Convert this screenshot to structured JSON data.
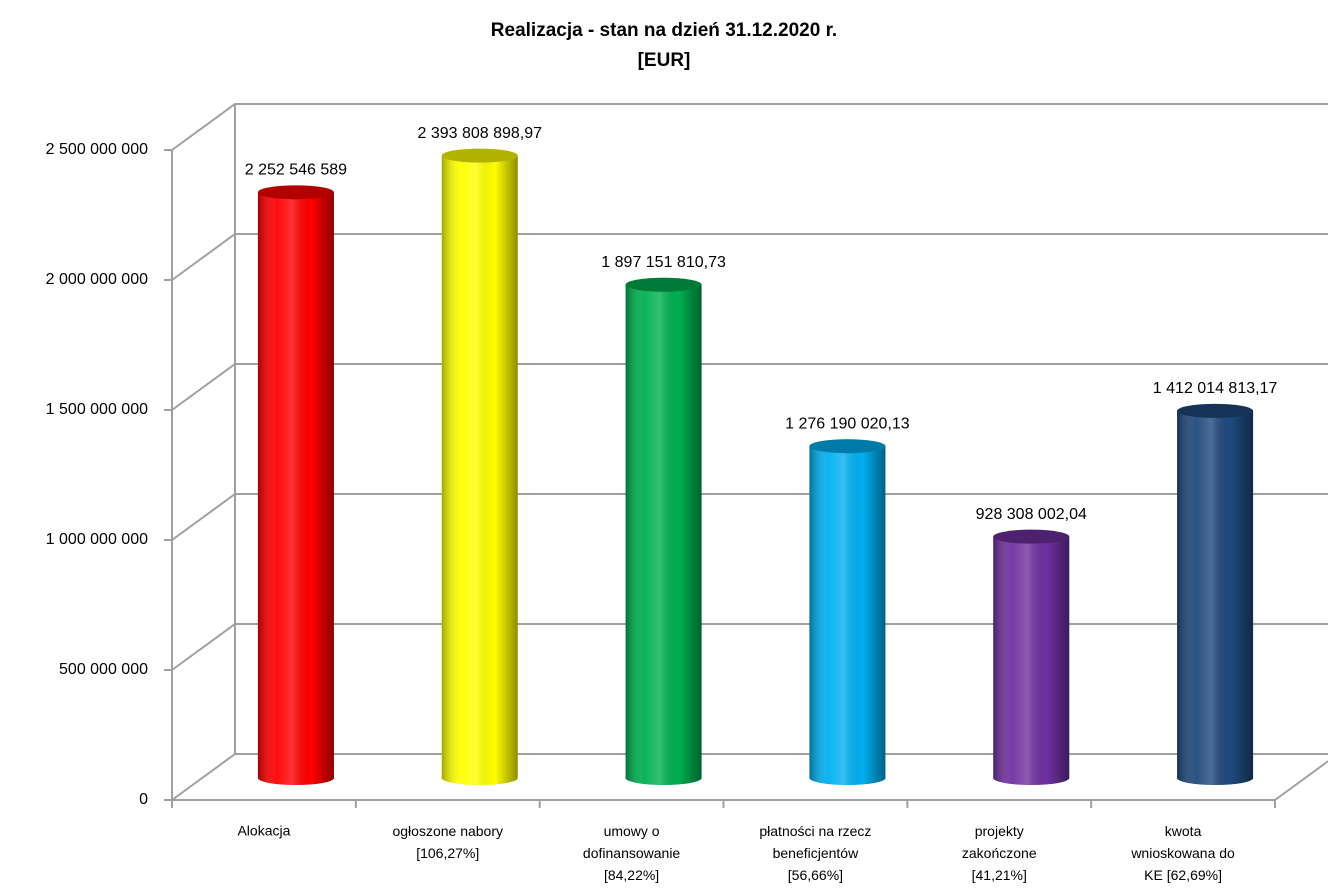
{
  "chart_data": {
    "type": "bar3d",
    "title": "Realizacja - stan na dzień 31.12.2020 r.\n[EUR]",
    "categories": [
      "Alokacja",
      "ogłoszone nabory\n[106,27%]",
      "umowy o\ndofinansowanie\n[84,22%]",
      "płatności na rzecz\nbeneficjentów\n[56,66%]",
      "projekty\nzakończone\n[41,21%]",
      "kwota\nwnioskowana do\nKE [62,69%]"
    ],
    "values": [
      2252546589,
      2393808898.97,
      1897151810.73,
      1276190020.13,
      928308002.04,
      1412014813.17
    ],
    "value_labels": [
      "2 252 546 589",
      "2 393 808 898,97",
      "1 897 151 810,73",
      "1 276 190 020,13",
      "928 308 002,04",
      "1 412 014 813,17"
    ],
    "colors": [
      "#ff0000",
      "#ffff00",
      "#00b050",
      "#00b0f0",
      "#7030a0",
      "#1f497d"
    ],
    "ylim": [
      0,
      2500000000
    ],
    "yticks": [
      0,
      {
        "value": 500000000,
        "label": "500 000 000"
      },
      {
        "value": 1000000000,
        "label": "1 000 000 000"
      },
      {
        "value": 1500000000,
        "label": "1 500 000 000"
      },
      {
        "value": 2000000000,
        "label": "2 000 000 000"
      },
      {
        "value": 2500000000,
        "label": "2 500 000 000"
      }
    ],
    "grid": true
  }
}
